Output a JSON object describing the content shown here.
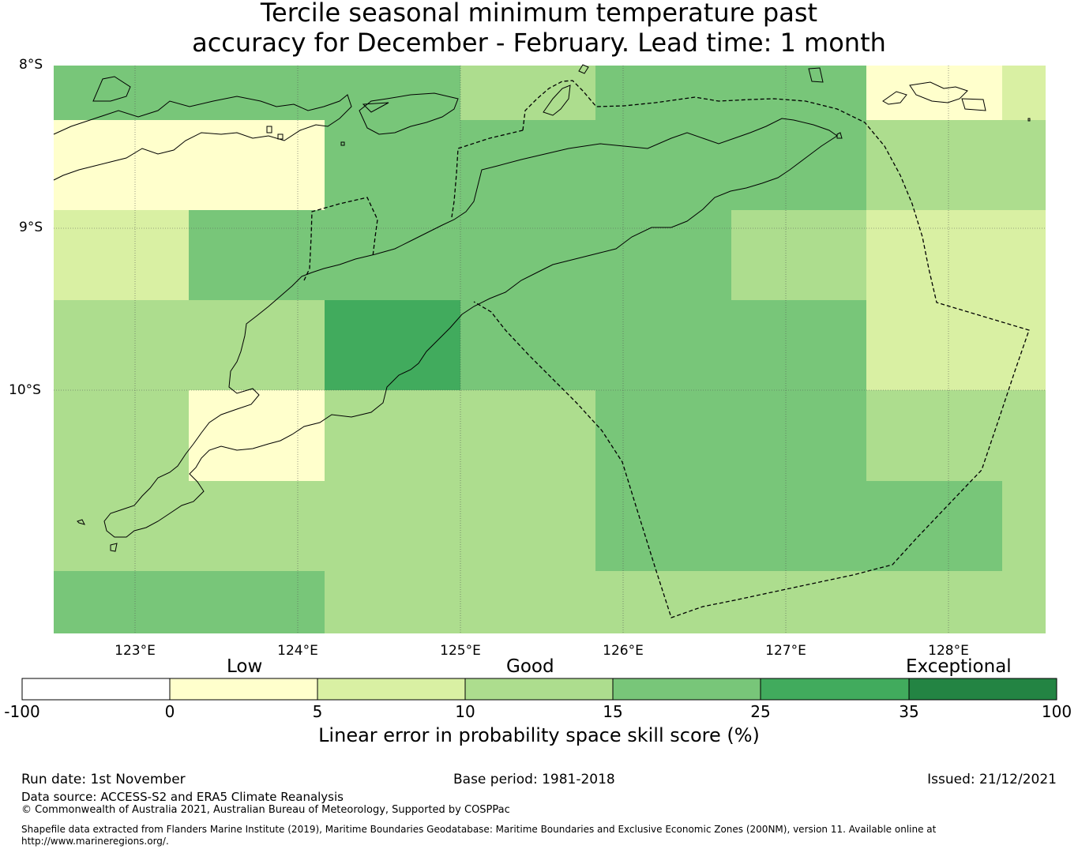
{
  "title": {
    "line1": "Tercile seasonal minimum temperature past",
    "line2": "accuracy for December - February. Lead time: 1 month"
  },
  "map": {
    "lat_labels": [
      "8°S",
      "9°S",
      "10°S"
    ],
    "lon_labels": [
      "123°E",
      "124°E",
      "125°E",
      "126°E",
      "127°E",
      "128°E"
    ],
    "grid": "dotted"
  },
  "legend": {
    "categories": [
      "Low",
      "Good",
      "Exceptional"
    ],
    "ticks": [
      "-100",
      "0",
      "5",
      "10",
      "15",
      "25",
      "35",
      "100"
    ],
    "colors": [
      "#ffffff",
      "#ffffcc",
      "#d9f0a3",
      "#addd8e",
      "#78c679",
      "#41ab5d",
      "#238443"
    ],
    "label": "Linear error in probability space skill score (%)"
  },
  "footer": {
    "run_date": "Run date: 1st November",
    "base_period": "Base period: 1981-2018",
    "issued": "Issued: 21/12/2021",
    "data_source": "Data source: ACCESS-S2 and ERA5 Climate Reanalysis",
    "copyright": "© Commonwealth of Australia 2021, Australian Bureau of Meteorology, Supported by COSPPac",
    "shapefile_line1": "Shapefile data extracted from Flanders Marine Institute (2019), Maritime Boundaries Geodatabase: Maritime Boundaries and Exclusive Economic Zones (200NM), version 11. Available online at",
    "shapefile_line2": "http://www.marineregions.org/."
  }
}
